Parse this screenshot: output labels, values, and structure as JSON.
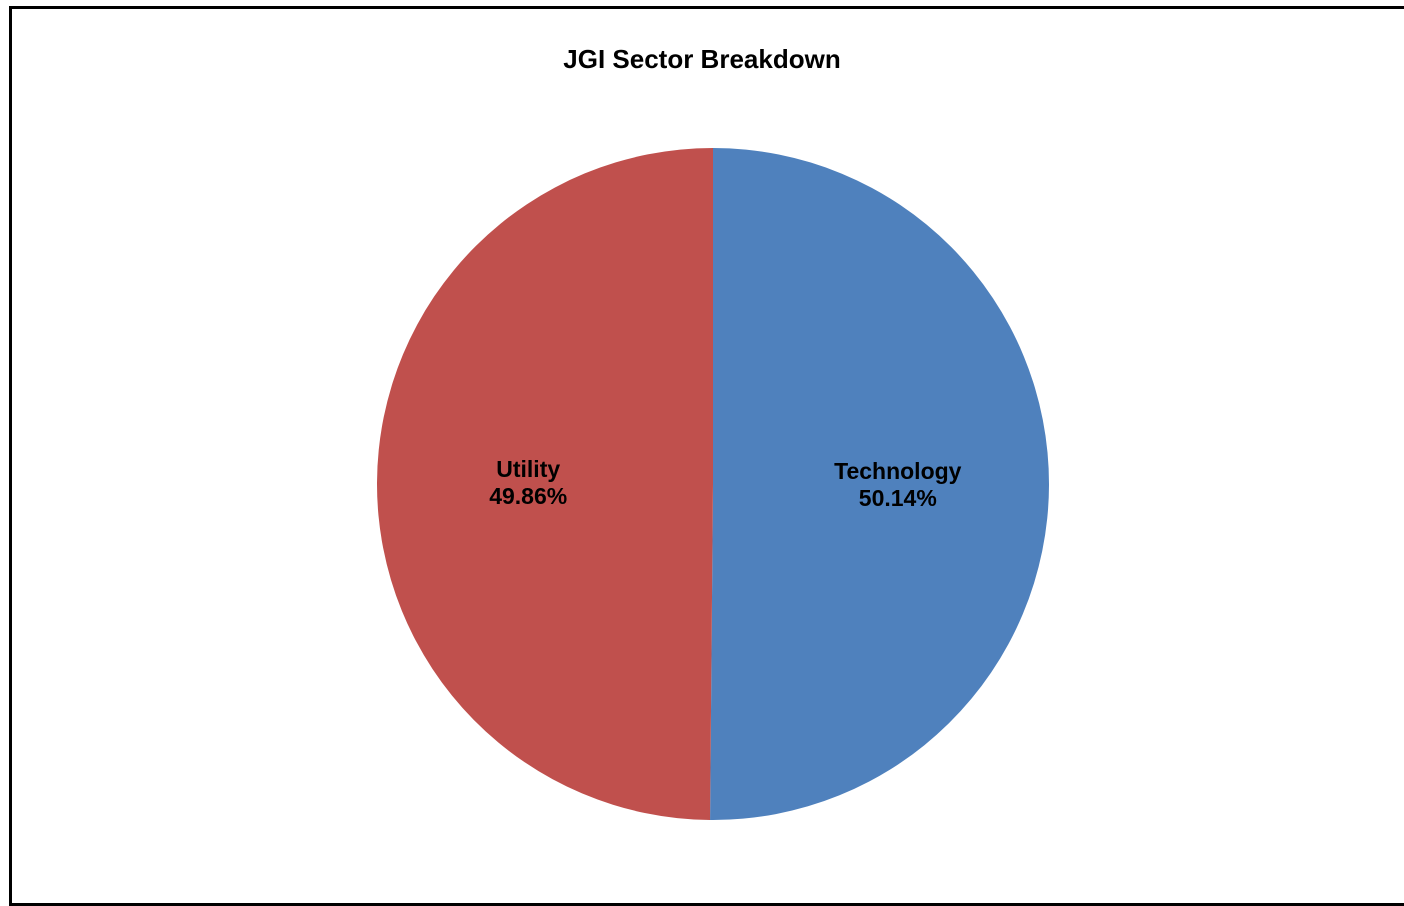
{
  "chart_data": {
    "type": "pie",
    "title": "JGI Sector Breakdown",
    "slices": [
      {
        "label": "Technology",
        "value": 50.14,
        "display": "50.14%",
        "color": "#4F81BD"
      },
      {
        "label": "Utility",
        "value": 49.86,
        "display": "49.86%",
        "color": "#C0504D"
      }
    ],
    "start_angle": "12 o'clock",
    "direction": "clockwise",
    "data_labels": "inside",
    "legend": "none"
  }
}
